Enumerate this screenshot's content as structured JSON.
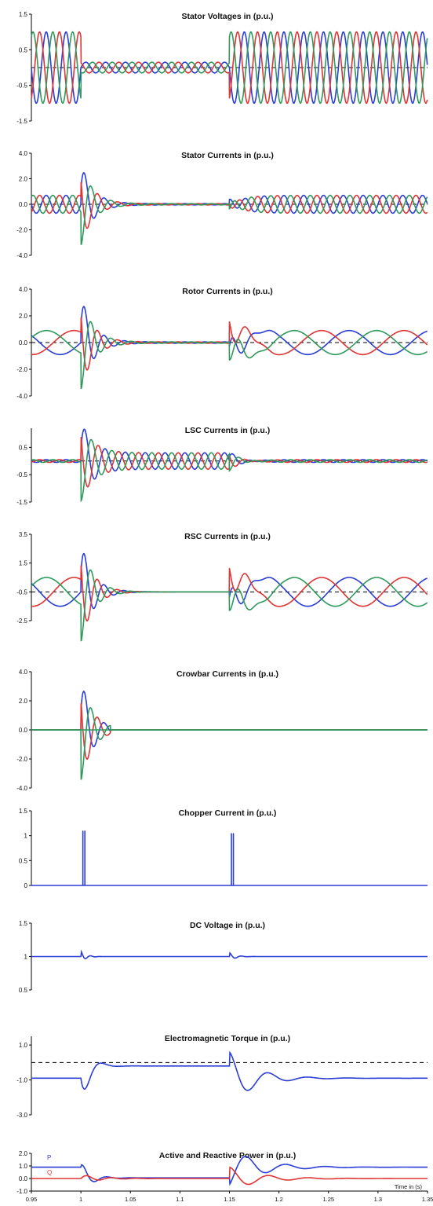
{
  "figure": {
    "x_ticks": [
      "0.95",
      "1",
      "1.05",
      "1.1",
      "1.15",
      "1.2",
      "1.25",
      "1.3",
      "1.35"
    ],
    "x_label": "Time in (s)",
    "colors": {
      "phase_a": "#2b3ed6",
      "phase_b": "#e03535",
      "phase_c": "#2f9a5c",
      "zero": "#000000"
    }
  },
  "chart_data": [
    {
      "type": "line",
      "title": "Stator Voltages in (p.u.)",
      "yticks": [
        "1.5",
        "0.5",
        "-0.5",
        "-1.5"
      ],
      "ylim": [
        -1.5,
        1.5
      ],
      "zero_line": true,
      "series_desc": "three-phase 50 Hz sinusoids",
      "segments": [
        {
          "t0": 0.95,
          "t1": 1.0,
          "amp": 1.0
        },
        {
          "t0": 1.0,
          "t1": 1.15,
          "amp": 0.15
        },
        {
          "t0": 1.15,
          "t1": 1.35,
          "amp": 1.0
        }
      ]
    },
    {
      "type": "line",
      "title": "Stator Currents in (p.u.)",
      "yticks": [
        "4.0",
        "2.0",
        "0.0",
        "-2.0",
        "-4.0"
      ],
      "ylim": [
        -4,
        4
      ],
      "zero_line": true,
      "segments": [
        {
          "t0": 0.95,
          "t1": 1.0,
          "amp": 0.7
        },
        {
          "t0": 1.0,
          "t1": 1.15,
          "amp": 0.05,
          "transient": 3.2
        },
        {
          "t0": 1.15,
          "t1": 1.35,
          "amp": 0.7,
          "transient": 1.0
        }
      ]
    },
    {
      "type": "line",
      "title": "Rotor Currents in (p.u.)",
      "yticks": [
        "4.0",
        "2.0",
        "0.0",
        "-2.0",
        "-4.0"
      ],
      "ylim": [
        -4,
        4
      ],
      "zero_line": true,
      "segments": [
        {
          "t0": 0.95,
          "t1": 1.0,
          "amp": 0.9,
          "slow": true
        },
        {
          "t0": 1.0,
          "t1": 1.15,
          "amp": 0.05,
          "transient": 3.5
        },
        {
          "t0": 1.15,
          "t1": 1.35,
          "amp": 0.9,
          "slow": true,
          "transient": 1.5
        }
      ]
    },
    {
      "type": "line",
      "title": "LSC Currents in (p.u.)",
      "yticks": [
        "0.5",
        "-0.5",
        "-1.5"
      ],
      "ylim": [
        -1.5,
        1.2
      ],
      "zero_line": true,
      "segments": [
        {
          "t0": 0.95,
          "t1": 1.0,
          "amp": 0.05
        },
        {
          "t0": 1.0,
          "t1": 1.15,
          "amp": 0.3,
          "transient": 1.2
        },
        {
          "t0": 1.15,
          "t1": 1.35,
          "amp": 0.05,
          "transient": 0.4
        }
      ]
    },
    {
      "type": "line",
      "title": "RSC Currents in (p.u.)",
      "yticks": [
        "3.5",
        "1.5",
        "-0.5",
        "-2.5"
      ],
      "ylim": [
        -2.5,
        3.5
      ],
      "zero_line": true,
      "zero_value": -0.5,
      "segments": [
        {
          "t0": 0.95,
          "t1": 1.0,
          "amp": 1.0,
          "slow": true
        },
        {
          "t0": 1.0,
          "t1": 1.15,
          "amp": 0.0,
          "transient": 3.5
        },
        {
          "t0": 1.15,
          "t1": 1.35,
          "amp": 1.0,
          "slow": true,
          "transient": 1.5
        }
      ]
    },
    {
      "type": "line",
      "title": "Crowbar Currents in (p.u.)",
      "yticks": [
        "4.0",
        "2.0",
        "0.0",
        "-2.0",
        "-4.0"
      ],
      "ylim": [
        -4,
        4
      ],
      "zero_line": false,
      "segments": [
        {
          "t0": 1.0,
          "t1": 1.03,
          "amp": 0.0,
          "transient": 3.5
        }
      ]
    },
    {
      "type": "line",
      "title": "Chopper Current in (p.u.)",
      "yticks": [
        "1.5",
        "1",
        "0.5",
        "0"
      ],
      "ylim": [
        0,
        1.5
      ],
      "pulses": [
        {
          "t": 1.002,
          "value": 1.1
        },
        {
          "t": 1.004,
          "value": 1.1
        },
        {
          "t": 1.152,
          "value": 1.05
        },
        {
          "t": 1.154,
          "value": 1.05
        }
      ]
    },
    {
      "type": "line",
      "title": "DC Voltage in (p.u.)",
      "yticks": [
        "1.5",
        "1",
        "0.5"
      ],
      "ylim": [
        0.5,
        1.5
      ],
      "baseline": 1.0
    },
    {
      "type": "line",
      "title": "Electromagnetic Torque in (p.u.)",
      "yticks": [
        "1.0",
        "-1.0",
        "-3.0"
      ],
      "ylim": [
        -3.0,
        1.5
      ],
      "zero_line": true,
      "zero_value": 0.0,
      "baseline": -0.9
    },
    {
      "type": "line",
      "title": "Active and Reactive Power in (p.u.)",
      "yticks": [
        "2.0",
        "1.0",
        "0.0",
        "-1.0"
      ],
      "ylim": [
        -1.0,
        2.0
      ],
      "series": [
        {
          "name": "P",
          "values_desc": "0.9 pre-fault, dip to ~0 during fault, recovers to 0.9"
        },
        {
          "name": "Q",
          "values_desc": "0.0 pre-fault, oscillations during/after fault"
        }
      ]
    }
  ]
}
